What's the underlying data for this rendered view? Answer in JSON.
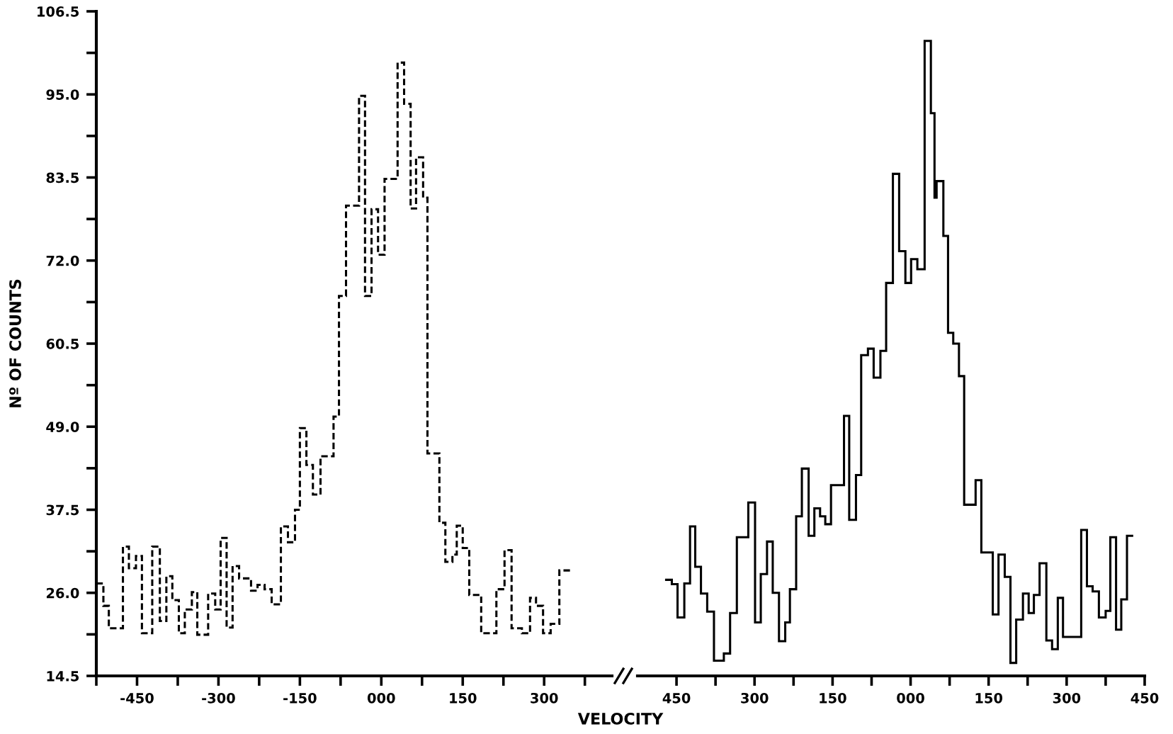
{
  "chart_data": [
    {
      "type": "histogram",
      "ylabel": "Nº OF COUNTS",
      "xlabel": "VELOCITY",
      "line_style": "dashed",
      "color": "#000000",
      "grid": false,
      "legend": false,
      "xlim": [
        -525,
        425
      ],
      "xticks": [
        {
          "value": -525,
          "label": null
        },
        -450,
        {
          "value": -375,
          "label": null
        },
        -300,
        {
          "value": -225,
          "label": null
        },
        -150,
        {
          "value": -75,
          "label": null
        },
        {
          "value": 0,
          "label": "000"
        },
        {
          "value": 75,
          "label": null
        },
        150,
        {
          "value": 225,
          "label": null
        },
        300,
        {
          "value": 375,
          "label": null
        }
      ],
      "ylim": [
        14.5,
        106.5
      ],
      "yticks": [
        14.5,
        {
          "value": 20.25,
          "label": null
        },
        {
          "value": 26,
          "label": "26.0"
        },
        {
          "value": 31.75,
          "label": null
        },
        37.5,
        {
          "value": 43.25,
          "label": null
        },
        {
          "value": 49,
          "label": "49.0"
        },
        {
          "value": 54.75,
          "label": null
        },
        60.5,
        {
          "value": 66.25,
          "label": null
        },
        {
          "value": 72,
          "label": "72.0"
        },
        {
          "value": 77.75,
          "label": null
        },
        83.5,
        {
          "value": 89.25,
          "label": null
        },
        {
          "value": 95,
          "label": "95.0"
        },
        {
          "value": 100.75,
          "label": null
        },
        106.5
      ],
      "bins": [
        -525,
        -512,
        -502,
        -476,
        -465,
        -452,
        -441,
        -422,
        -408,
        -396,
        -385,
        -373,
        -362,
        -349,
        -339,
        -319,
        -306,
        -296,
        -285,
        -274,
        -262,
        -240,
        -228,
        -215,
        -202,
        -185,
        -172,
        -159,
        -150,
        -138,
        -126,
        -112,
        -88,
        -78,
        -65,
        -41,
        -30,
        -18,
        -6,
        6,
        30,
        42,
        54,
        64,
        77,
        85,
        107,
        118,
        131,
        139,
        150,
        162,
        184,
        212,
        227,
        240,
        259,
        274,
        285,
        298,
        312,
        328,
        349
      ],
      "values": [
        27.3,
        24.2,
        21.1,
        32.4,
        29.4,
        31.1,
        20.4,
        32.4,
        22.1,
        28.3,
        25.0,
        20.4,
        23.7,
        26.1,
        20.2,
        25.9,
        23.7,
        33.6,
        21.2,
        29.7,
        28.0,
        26.3,
        27.1,
        26.5,
        24.4,
        35.2,
        33.0,
        37.5,
        48.8,
        43.7,
        39.6,
        44.9,
        50.4,
        67.1,
        79.6,
        94.8,
        67.1,
        79.1,
        72.8,
        83.3,
        99.4,
        93.7,
        79.2,
        86.3,
        80.7,
        45.3,
        35.7,
        30.3,
        31.3,
        35.3,
        32.2,
        25.7,
        20.4,
        26.5,
        31.9,
        21.1,
        20.4,
        25.3,
        24.2,
        20.4,
        21.7,
        29.1
      ]
    },
    {
      "type": "histogram",
      "line_style": "solid",
      "color": "#000000",
      "grid": false,
      "legend": false,
      "tick_labels": "x",
      "xlim": [
        -525,
        450
      ],
      "xticks": [
        {
          "value": -450,
          "label": "450"
        },
        {
          "value": -375,
          "label": null
        },
        {
          "value": -300,
          "label": "300"
        },
        {
          "value": -225,
          "label": null
        },
        {
          "value": -150,
          "label": "150"
        },
        {
          "value": -75,
          "label": null
        },
        {
          "value": 0,
          "label": "000"
        },
        {
          "value": 75,
          "label": null
        },
        150,
        {
          "value": 225,
          "label": null
        },
        300,
        {
          "value": 375,
          "label": null
        },
        450
      ],
      "ylim": [
        14.5,
        106.5
      ],
      "bins": [
        -472,
        -459,
        -448,
        -435,
        -424,
        -414,
        -403,
        -391,
        -378,
        -359,
        -347,
        -334,
        -312,
        -299,
        -288,
        -276,
        -265,
        -253,
        -241,
        -232,
        -220,
        -209,
        -196,
        -185,
        -174,
        -164,
        -153,
        -128,
        -118,
        -105,
        -95,
        -82,
        -71,
        -58,
        -47,
        -34,
        -22,
        -10,
        1,
        13,
        27,
        39,
        46,
        50,
        63,
        72,
        82,
        93,
        103,
        125,
        136,
        158,
        169,
        181,
        192,
        203,
        216,
        227,
        237,
        248,
        261,
        272,
        283,
        293,
        328,
        339,
        350,
        362,
        375,
        384,
        395,
        405,
        416,
        428
      ],
      "values": [
        27.8,
        27.2,
        22.6,
        27.3,
        35.2,
        29.6,
        25.9,
        23.4,
        16.6,
        17.6,
        23.2,
        33.7,
        38.5,
        21.9,
        28.6,
        33.1,
        26.0,
        19.3,
        21.9,
        26.5,
        36.6,
        43.2,
        33.9,
        37.7,
        36.6,
        35.5,
        40.9,
        50.5,
        36.1,
        42.3,
        58.9,
        59.8,
        55.8,
        59.5,
        68.9,
        84.0,
        73.3,
        68.9,
        72.2,
        70.8,
        102.4,
        92.4,
        80.7,
        83.0,
        75.4,
        62.0,
        60.5,
        56.0,
        38.2,
        41.6,
        31.6,
        23.0,
        31.3,
        28.2,
        16.3,
        22.3,
        25.9,
        23.2,
        25.7,
        30.1,
        19.4,
        18.2,
        25.3,
        19.9,
        34.7,
        26.9,
        26.2,
        22.6,
        23.5,
        33.7,
        20.9,
        25.1,
        33.9
      ]
    }
  ]
}
